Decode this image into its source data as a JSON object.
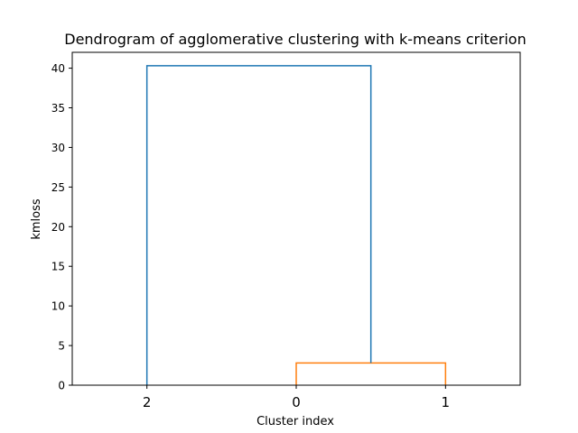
{
  "chart_data": {
    "type": "dendrogram",
    "title": "Dendrogram of agglomerative clustering with k-means criterion",
    "xlabel": "Cluster index",
    "ylabel": "kmloss",
    "ylim": [
      0,
      42
    ],
    "yticks": [
      0,
      5,
      10,
      15,
      20,
      25,
      30,
      35,
      40
    ],
    "leaf_order": [
      "2",
      "0",
      "1"
    ],
    "xlim": [
      0,
      30
    ],
    "merges": [
      {
        "name": "merge-0-1",
        "left": "0",
        "right": "1",
        "height": 2.8,
        "color": "#ff7f0e",
        "x_left": 15,
        "x_right": 25,
        "y_left": 0,
        "y_right": 0
      },
      {
        "name": "merge-2-01",
        "left": "2",
        "right": "0+1",
        "height": 40.3,
        "color": "#1f77b4",
        "x_left": 5,
        "x_right": 20,
        "y_left": 0,
        "y_right": 2.8
      }
    ]
  }
}
